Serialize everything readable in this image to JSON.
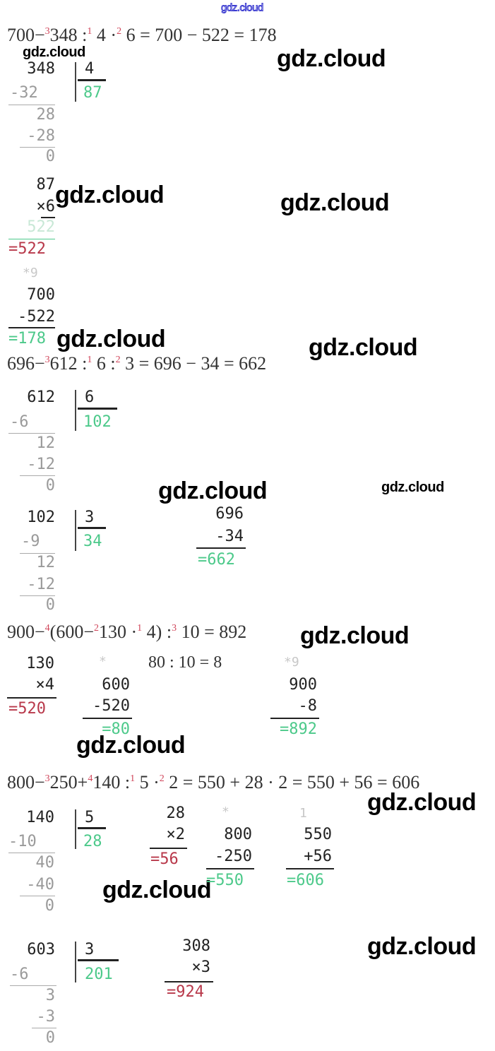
{
  "watermark": "gdz.cloud",
  "colors": {
    "result_green": "#4cc98a",
    "intermediate_red": "#b8384a",
    "order_mark": "#d0455a"
  },
  "ex1": {
    "p0": "700−",
    "o1": "3",
    "p1": "348 :",
    "o2": "1",
    "p2": " 4 ·",
    "o3": "2",
    "p3": " 6 = 700 − 522 = 178"
  },
  "b1": {
    "dividend": "348",
    "divisor": "4",
    "quotient": "87",
    "s1": "-32",
    "r1": "28",
    "s2": "-28",
    "r2": "0"
  },
  "b2": {
    "a": "87",
    "m": "×6",
    "p": "522",
    "res": "=522",
    "carry": "*9",
    "x": "700",
    "y": "-522",
    "res2": "=178"
  },
  "ex2": {
    "p0": "696−",
    "o1": "3",
    "p1": "612 :",
    "o2": "1",
    "p2": " 6 :",
    "o3": "2",
    "p3": " 3 = 696 − 34 = 662"
  },
  "b3": {
    "dividend": "612",
    "divisor": "6",
    "quotient": "102",
    "s1": "-6",
    "r1": "12",
    "s2": "-12",
    "r2": "0"
  },
  "b4": {
    "dividend": "102",
    "divisor": "3",
    "quotient": "34",
    "s1": "-9",
    "r1": "12",
    "s2": "-12",
    "r2": "0"
  },
  "b5": {
    "x": "696",
    "y": "-34",
    "res": "=662"
  },
  "ex3": {
    "p0": "900−",
    "o1": "4",
    "p1": "(600−",
    "o2": "2",
    "p2": "130 ·",
    "o3": "1",
    "p3": " 4) :",
    "o4": "3",
    "p4": " 10 = 892"
  },
  "b6": {
    "a": "130",
    "m": "×4",
    "res": "=520",
    "star": "*",
    "x": "600",
    "y": "-520",
    "res2": "=80",
    "div": "80 : 10 = 8",
    "carry": "*9",
    "x2": "900",
    "y2": "-8",
    "res3": "=892"
  },
  "ex4": {
    "p0": "800−",
    "o1": "3",
    "p1": "250+",
    "o2": "4",
    "p2": "140 :",
    "o3": "1",
    "p3": " 5 ·",
    "o4": "2",
    "p4": " 2 = 550 + 28 · 2 = 550 + 56 = 606"
  },
  "b7": {
    "dividend": "140",
    "divisor": "5",
    "quotient": "28",
    "s1": "-10",
    "r1": "40",
    "s2": "-40",
    "r2": "0"
  },
  "b8": {
    "a": "28",
    "m": "×2",
    "res": "=56",
    "star": "*",
    "x": "800",
    "y": "-250",
    "res2": "=550",
    "carry": "1",
    "x2": "550",
    "y2": "+56",
    "res3": "=606"
  },
  "b9": {
    "dividend": "603",
    "divisor": "3",
    "quotient": "201",
    "s1": "-6",
    "r1": "3",
    "s2": "-3",
    "r2": "0"
  },
  "b10": {
    "a": "308",
    "m": "×3",
    "res": "=924"
  }
}
